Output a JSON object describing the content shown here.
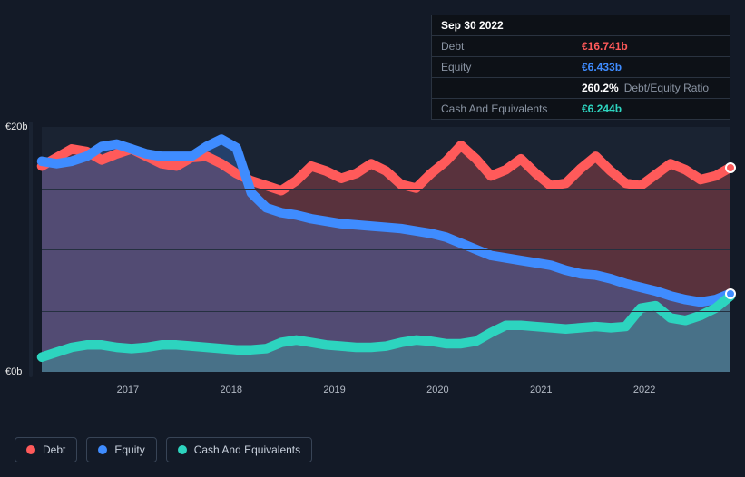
{
  "background_color": "#131a27",
  "plot_background": "#1a2332",
  "grid_color": "#253040",
  "text_color": "#e8e8e8",
  "muted_text": "#8a94a3",
  "tooltip": {
    "date": "Sep 30 2022",
    "rows": [
      {
        "label": "Debt",
        "value": "€16.741b",
        "color": "#ff5a5a"
      },
      {
        "label": "Equity",
        "value": "€6.433b",
        "color": "#3f8cff"
      },
      {
        "label": "",
        "value": "260.2%",
        "extra": "Debt/Equity Ratio",
        "color": "#ffffff"
      },
      {
        "label": "Cash And Equivalents",
        "value": "€6.244b",
        "color": "#2dd4bf"
      }
    ]
  },
  "chart": {
    "type": "area",
    "ylim": [
      0,
      20
    ],
    "y_unit_suffix": "b",
    "y_currency": "€",
    "y_ticks": [
      0,
      20
    ],
    "y_gridlines": [
      5,
      10,
      15
    ],
    "x_labels": [
      "2017",
      "2018",
      "2019",
      "2020",
      "2021",
      "2022"
    ],
    "x_positions_pct": [
      12.5,
      27.5,
      42.5,
      57.5,
      72.5,
      87.5
    ],
    "fill_opacity": 0.28,
    "line_width": 3,
    "series": [
      {
        "name": "Debt",
        "color": "#ff5a5a",
        "values": [
          16.8,
          17.5,
          18.2,
          18.0,
          17.3,
          17.8,
          18.2,
          17.6,
          17.0,
          16.8,
          17.5,
          17.6,
          17.0,
          16.2,
          15.6,
          15.2,
          14.8,
          15.6,
          16.8,
          16.4,
          15.8,
          16.2,
          17.0,
          16.4,
          15.3,
          15.0,
          16.2,
          17.2,
          18.5,
          17.4,
          16.0,
          16.5,
          17.4,
          16.2,
          15.2,
          15.4,
          16.6,
          17.6,
          16.4,
          15.4,
          15.2,
          16.1,
          17.0,
          16.5,
          15.7,
          16.0,
          16.7
        ],
        "marker_at_end": true
      },
      {
        "name": "Equity",
        "color": "#3f8cff",
        "values": [
          17.2,
          17.0,
          17.2,
          17.6,
          18.4,
          18.6,
          18.2,
          17.8,
          17.6,
          17.6,
          17.6,
          18.4,
          19.0,
          18.3,
          14.6,
          13.4,
          13.0,
          12.8,
          12.5,
          12.3,
          12.1,
          12.0,
          11.9,
          11.8,
          11.7,
          11.5,
          11.3,
          11.0,
          10.5,
          10.0,
          9.5,
          9.3,
          9.1,
          8.9,
          8.7,
          8.3,
          8.0,
          7.9,
          7.6,
          7.2,
          6.9,
          6.6,
          6.2,
          5.9,
          5.7,
          5.9,
          6.4
        ],
        "marker_at_end": true
      },
      {
        "name": "Cash And Equivalents",
        "color": "#2dd4bf",
        "values": [
          1.2,
          1.6,
          2.0,
          2.2,
          2.2,
          2.0,
          1.9,
          2.0,
          2.2,
          2.2,
          2.1,
          2.0,
          1.9,
          1.8,
          1.8,
          1.9,
          2.4,
          2.6,
          2.4,
          2.2,
          2.1,
          2.0,
          2.0,
          2.1,
          2.4,
          2.6,
          2.5,
          2.3,
          2.3,
          2.5,
          3.2,
          3.8,
          3.8,
          3.7,
          3.6,
          3.5,
          3.6,
          3.7,
          3.6,
          3.7,
          5.2,
          5.4,
          4.4,
          4.2,
          4.6,
          5.2,
          6.2
        ],
        "marker_at_end": false
      }
    ]
  },
  "legend": [
    {
      "label": "Debt",
      "color": "#ff5a5a"
    },
    {
      "label": "Equity",
      "color": "#3f8cff"
    },
    {
      "label": "Cash And Equivalents",
      "color": "#2dd4bf"
    }
  ]
}
